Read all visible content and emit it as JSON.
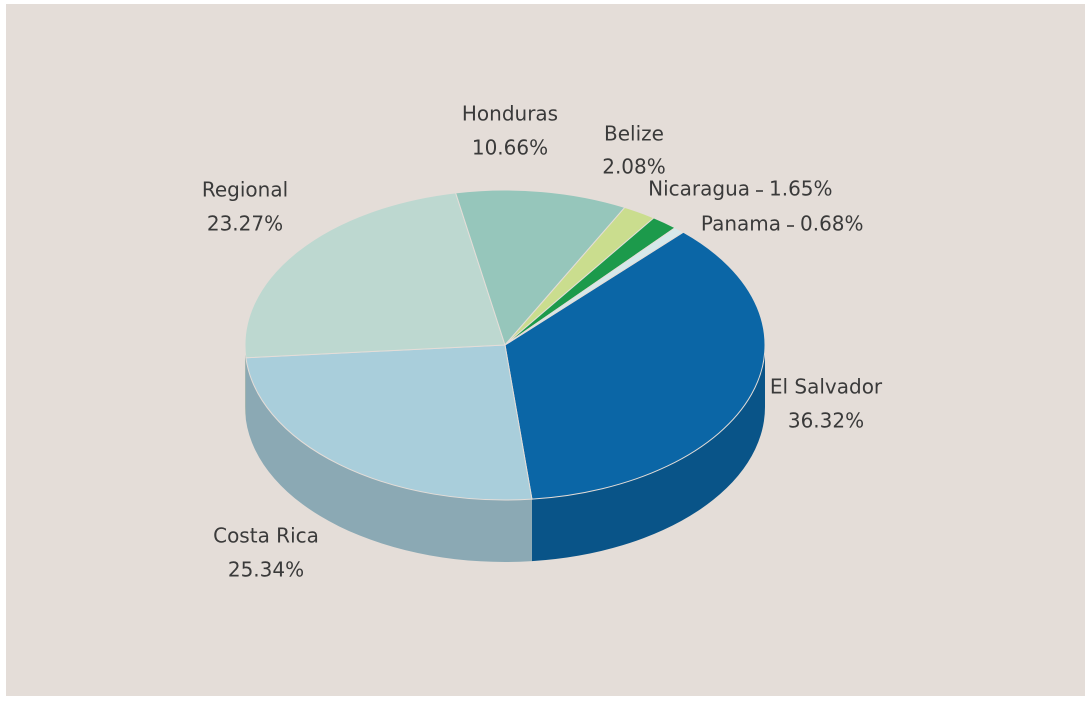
{
  "chart_data": {
    "type": "pie",
    "categories": [
      "El Salvador",
      "Costa Rica",
      "Regional",
      "Honduras",
      "Belize",
      "Nicaragua",
      "Panama"
    ],
    "values": [
      36.32,
      25.34,
      23.27,
      10.66,
      2.08,
      1.65,
      0.68
    ],
    "value_labels": [
      "36.32%",
      "25.34%",
      "23.27%",
      "10.66%",
      "2.08%",
      "1.65%",
      "0.68%"
    ],
    "colors": [
      "#0b66a6",
      "#a9cedb",
      "#bdd8d0",
      "#96c6bb",
      "#cadd8e",
      "#1c9a4b",
      "#d6e8ea"
    ]
  }
}
